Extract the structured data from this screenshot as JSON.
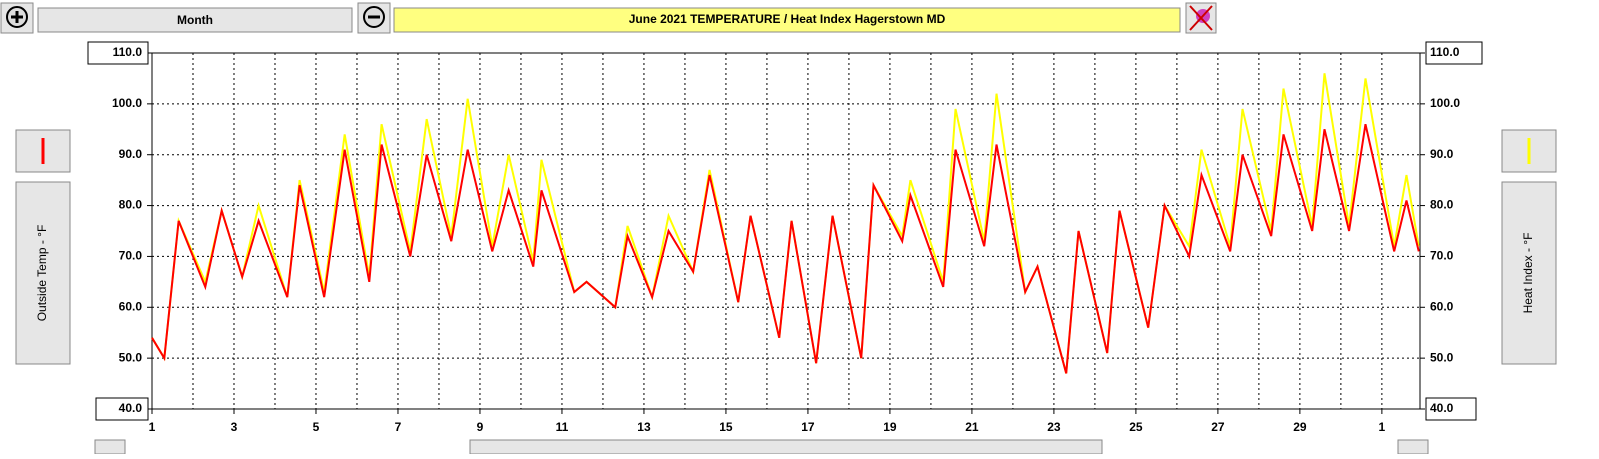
{
  "toolbar": {
    "period": "Month"
  },
  "chart_data": {
    "type": "line",
    "title": "June 2021  TEMPERATURE / Heat Index  Hagerstown MD",
    "x": [
      1,
      1.3,
      1.65,
      2.3,
      2.7,
      3.2,
      3.6,
      4.3,
      4.6,
      5.2,
      5.7,
      6.3,
      6.6,
      7.3,
      7.7,
      8.3,
      8.7,
      9.3,
      9.7,
      10.3,
      10.5,
      11.3,
      11.6,
      12.3,
      12.6,
      13.2,
      13.6,
      14.2,
      14.6,
      15.3,
      15.6,
      16.3,
      16.6,
      17.2,
      17.6,
      18.3,
      18.6,
      19.3,
      19.5,
      20.3,
      20.6,
      21.3,
      21.6,
      22.3,
      22.6,
      23.3,
      23.6,
      24.3,
      24.6,
      25.3,
      25.7,
      26.3,
      26.6,
      27.3,
      27.6,
      28.3,
      28.6,
      29.3,
      29.6,
      30.2,
      30.6,
      31.3,
      31.6,
      31.9
    ],
    "series": [
      {
        "name": "Heat Index - °F",
        "color": "#ffff00",
        "axis": "y2",
        "values": [
          54,
          50,
          77,
          65,
          79,
          66,
          80,
          62,
          85,
          63,
          94,
          66,
          96,
          71,
          97,
          74,
          101,
          72,
          90,
          69,
          89,
          63,
          65,
          60,
          76,
          62,
          78,
          67,
          87,
          61,
          78,
          54,
          77,
          49,
          78,
          50,
          84,
          74,
          85,
          65,
          99,
          73,
          102,
          63,
          68,
          47,
          75,
          51,
          79,
          56,
          80,
          72,
          91,
          72,
          99,
          75,
          103,
          76,
          106,
          76,
          105,
          72,
          86,
          72
        ]
      },
      {
        "name": "Outside Temp - °F",
        "color": "#ff0000",
        "values": [
          54,
          50,
          77,
          64,
          79,
          66,
          77,
          62,
          84,
          62,
          91,
          65,
          92,
          70,
          90,
          73,
          91,
          71,
          83,
          68,
          83,
          63,
          65,
          60,
          74,
          62,
          75,
          67,
          86,
          61,
          78,
          54,
          77,
          49,
          78,
          50,
          84,
          73,
          82,
          64,
          91,
          72,
          92,
          63,
          68,
          47,
          75,
          51,
          79,
          56,
          80,
          70,
          86,
          71,
          90,
          74,
          94,
          75,
          95,
          75,
          96,
          71,
          81,
          71
        ]
      }
    ],
    "xlim": [
      1,
      31.93
    ],
    "xticks": [
      1,
      3,
      5,
      7,
      9,
      11,
      13,
      15,
      17,
      19,
      21,
      23,
      25,
      27,
      29,
      {
        "value": 31,
        "label": "1"
      }
    ],
    "ylim": [
      40,
      110
    ],
    "yticks": [
      {
        "value": 40,
        "label": "40.0"
      },
      {
        "value": 50,
        "label": "50.0"
      },
      {
        "value": 60,
        "label": "60.0"
      },
      {
        "value": 70,
        "label": "70.0"
      },
      {
        "value": 80,
        "label": "80.0"
      },
      {
        "value": 90,
        "label": "90.0"
      },
      {
        "value": 100,
        "label": "100.0"
      },
      {
        "value": 110,
        "label": "110.0"
      }
    ],
    "y2lim": [
      40,
      110
    ],
    "y2ticks": [
      {
        "value": 40,
        "label": "40.0"
      },
      {
        "value": 50,
        "label": "50.0"
      },
      {
        "value": 60,
        "label": "60.0"
      },
      {
        "value": 70,
        "label": "70.0"
      },
      {
        "value": 80,
        "label": "80.0"
      },
      {
        "value": 90,
        "label": "90.0"
      },
      {
        "value": 100,
        "label": "100.0"
      },
      {
        "value": 110,
        "label": "110.0"
      }
    ],
    "grid": true
  }
}
